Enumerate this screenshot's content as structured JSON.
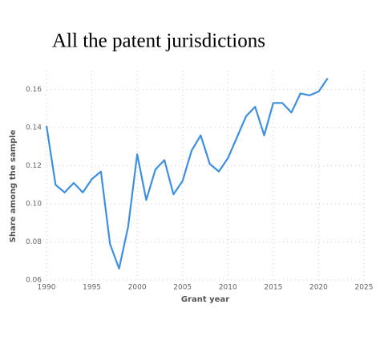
{
  "chart_data": {
    "type": "line",
    "title": "All the patent jurisdictions",
    "x_label": "Grant year",
    "y_label": "Share among the sample",
    "x": [
      1990,
      1991,
      1992,
      1993,
      1994,
      1995,
      1996,
      1997,
      1998,
      1999,
      2000,
      2001,
      2002,
      2003,
      2004,
      2005,
      2006,
      2007,
      2008,
      2009,
      2010,
      2011,
      2012,
      2013,
      2014,
      2015,
      2016,
      2017,
      2018,
      2019,
      2020,
      2021
    ],
    "series": [
      {
        "name": "Share",
        "color": "#3d8fe0",
        "values": [
          0.141,
          0.11,
          0.106,
          0.111,
          0.106,
          0.113,
          0.117,
          0.079,
          0.066,
          0.088,
          0.126,
          0.102,
          0.118,
          0.123,
          0.105,
          0.112,
          0.128,
          0.136,
          0.121,
          0.117,
          0.124,
          0.135,
          0.146,
          0.151,
          0.136,
          0.153,
          0.153,
          0.148,
          0.158,
          0.157,
          0.159,
          0.166
        ]
      }
    ],
    "xlim": [
      1990,
      2025
    ],
    "xticks": [
      1990,
      1995,
      2000,
      2005,
      2010,
      2015,
      2020,
      2025
    ],
    "ylim": [
      0.06,
      0.17
    ],
    "yticks": [
      0.06,
      0.08,
      {
        "value": 0.1,
        "label": "0.10"
      },
      0.12,
      0.14,
      0.16
    ],
    "grid": true
  }
}
